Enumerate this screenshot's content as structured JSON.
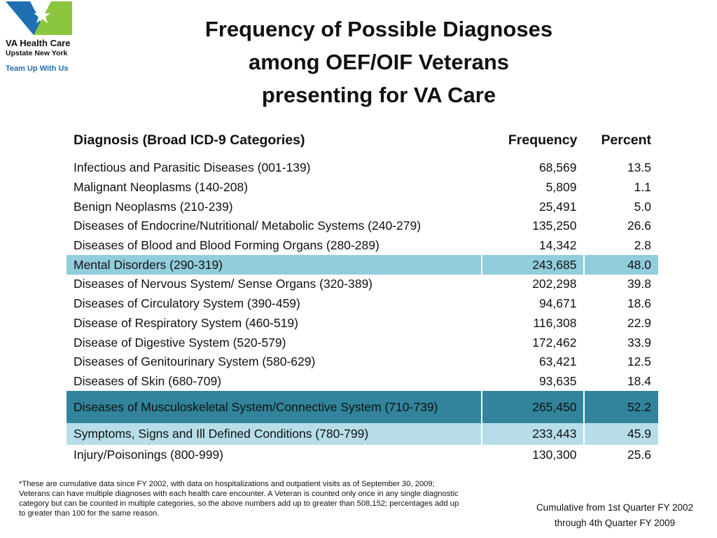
{
  "logo": {
    "name": "VA Health Care",
    "region": "Upstate New York",
    "tagline": "Team Up With Us",
    "colors": {
      "blue": "#1f6fb2",
      "green": "#8cc63f"
    }
  },
  "title": [
    "Frequency of Possible Diagnoses",
    "among OEF/OIF Veterans",
    "presenting for VA Care"
  ],
  "table": {
    "headers": [
      "Diagnosis (Broad ICD-9 Categories)",
      "Frequency",
      "Percent"
    ],
    "rows": [
      {
        "diagnosis": "Infectious and Parasitic Diseases (001-139)",
        "frequency": "68,569",
        "percent": "13.5"
      },
      {
        "diagnosis": "Malignant Neoplasms (140-208)",
        "frequency": "5,809",
        "percent": "1.1"
      },
      {
        "diagnosis": "Benign Neoplasms (210-239)",
        "frequency": "25,491",
        "percent": "5.0"
      },
      {
        "diagnosis": "Diseases of Endocrine/Nutritional/ Metabolic Systems (240-279)",
        "frequency": "135,250",
        "percent": "26.6"
      },
      {
        "diagnosis": "Diseases of Blood and Blood Forming Organs (280-289)",
        "frequency": "14,342",
        "percent": "2.8"
      },
      {
        "diagnosis": "Mental Disorders (290-319)",
        "frequency": "243,685",
        "percent": "48.0"
      },
      {
        "diagnosis": "Diseases of Nervous System/ Sense Organs (320-389)",
        "frequency": "202,298",
        "percent": "39.8"
      },
      {
        "diagnosis": "Diseases of Circulatory System (390-459)",
        "frequency": "94,671",
        "percent": "18.6"
      },
      {
        "diagnosis": "Disease of Respiratory System (460-519)",
        "frequency": "116,308",
        "percent": "22.9"
      },
      {
        "diagnosis": "Disease of Digestive System (520-579)",
        "frequency": "172,462",
        "percent": "33.9"
      },
      {
        "diagnosis": "Diseases of Genitourinary System  (580-629)",
        "frequency": "63,421",
        "percent": "12.5"
      },
      {
        "diagnosis": "Diseases of Skin (680-709)",
        "frequency": "93,635",
        "percent": "18.4"
      },
      {
        "diagnosis": "Diseases of Musculoskeletal System/Connective System (710-739)",
        "frequency": "265,450",
        "percent": "52.2"
      },
      {
        "diagnosis": "Symptoms, Signs and Ill Defined Conditions (780-799)",
        "frequency": "233,443",
        "percent": "45.9"
      },
      {
        "diagnosis": "Injury/Poisonings (800-999)",
        "frequency": "130,300",
        "percent": "25.6"
      }
    ],
    "colors": {
      "mental": "#92cddc",
      "musculoskeletal": "#31849b",
      "symptoms": "#b7dee8"
    }
  },
  "footnote": "*These are cumulative data since FY 2002, with data on hospitalizations and outpatient visits as of September 30, 2009; Veterans can have multiple diagnoses with each health care encounter.  A Veteran is counted only once in any single diagnostic category but can be counted in multiple categories, so the above numbers add up to greater than 508,152; percentages add up to greater than 100 for the same reason.",
  "cumulative": [
    "Cumulative from 1st Quarter FY 2002",
    "through 4th Quarter FY 2009"
  ]
}
